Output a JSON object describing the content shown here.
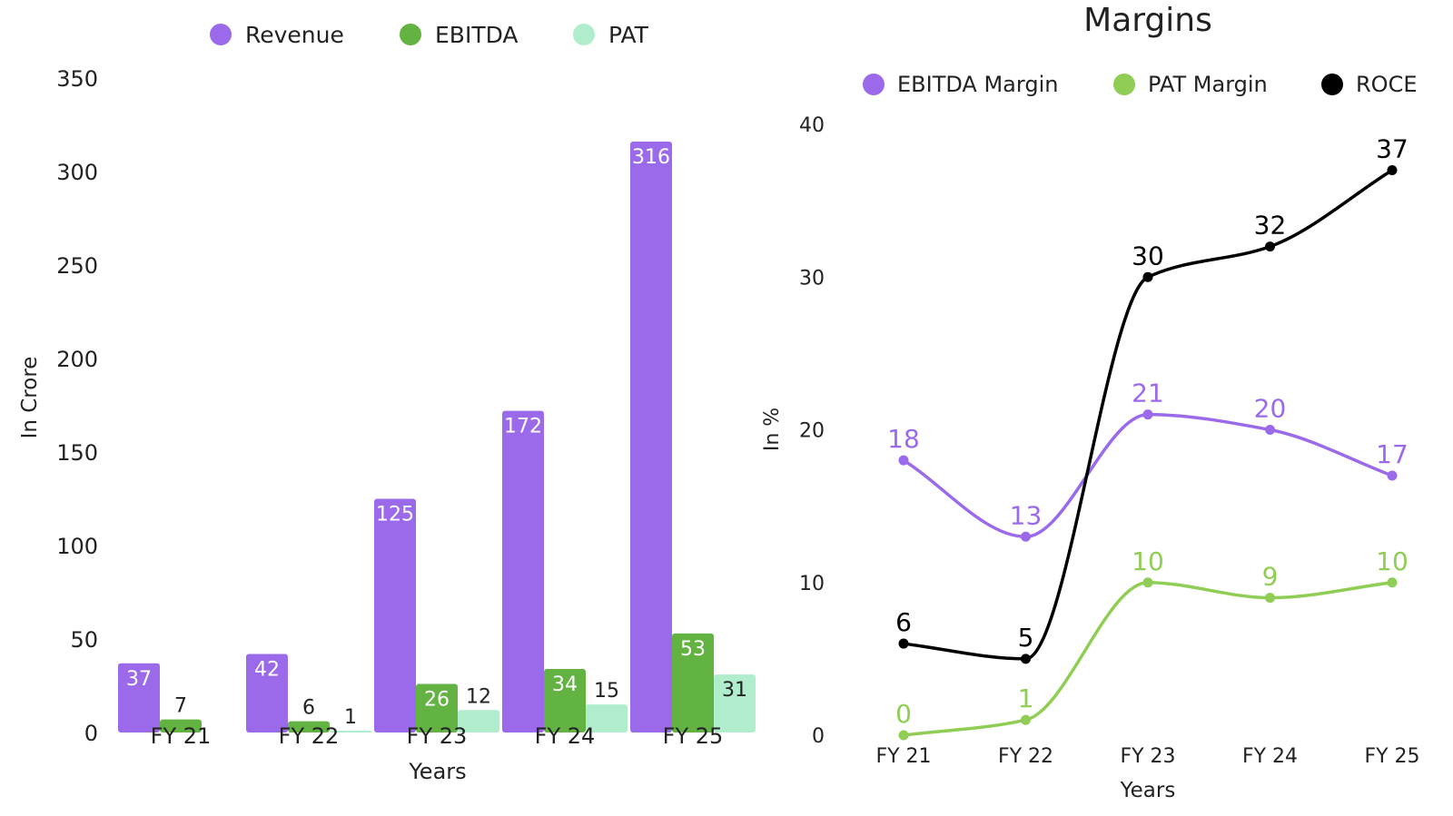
{
  "chart_data": [
    {
      "type": "bar",
      "title": "",
      "xlabel": "Years",
      "ylabel": "In Crore",
      "categories": [
        "FY 21",
        "FY 22",
        "FY 23",
        "FY 24",
        "FY 25"
      ],
      "ylim": [
        0,
        350
      ],
      "yticks": [
        0,
        50,
        100,
        150,
        200,
        250,
        300,
        350
      ],
      "legend_position": "top",
      "grid": false,
      "series": [
        {
          "name": "Revenue",
          "color": "#9b6aea",
          "values": [
            37,
            42,
            125,
            172,
            316
          ],
          "labels": [
            "37",
            "42",
            "125",
            "172",
            "316"
          ]
        },
        {
          "name": "EBITDA",
          "color": "#62b342",
          "values": [
            7,
            6,
            26,
            34,
            53
          ],
          "labels": [
            "7",
            "6",
            "26",
            "34",
            "53"
          ]
        },
        {
          "name": "PAT",
          "color": "#b0edcc",
          "values": [
            null,
            1,
            12,
            15,
            31
          ],
          "labels": [
            "",
            "1",
            "12",
            "15",
            "31"
          ]
        }
      ]
    },
    {
      "type": "line",
      "title": "Margins",
      "xlabel": "Years",
      "ylabel": "In %",
      "categories": [
        "FY 21",
        "FY 22",
        "FY 23",
        "FY 24",
        "FY 25"
      ],
      "ylim": [
        0,
        40
      ],
      "yticks": [
        0,
        10,
        20,
        30,
        40
      ],
      "legend_position": "top",
      "grid": false,
      "smooth": true,
      "series": [
        {
          "name": "EBITDA Margin",
          "color": "#9b6aea",
          "values": [
            18,
            13,
            21,
            20,
            17
          ],
          "labels": [
            "18",
            "13",
            "21",
            "20",
            "17"
          ]
        },
        {
          "name": "PAT Margin",
          "color": "#8fcd54",
          "values": [
            0,
            1,
            10,
            9,
            10
          ],
          "labels": [
            "0",
            "1",
            "10",
            "9",
            "10"
          ]
        },
        {
          "name": "ROCE",
          "color": "#000000",
          "values": [
            6,
            5,
            30,
            32,
            37
          ],
          "labels": [
            "6",
            "5",
            "30",
            "32",
            "37"
          ]
        }
      ]
    }
  ]
}
